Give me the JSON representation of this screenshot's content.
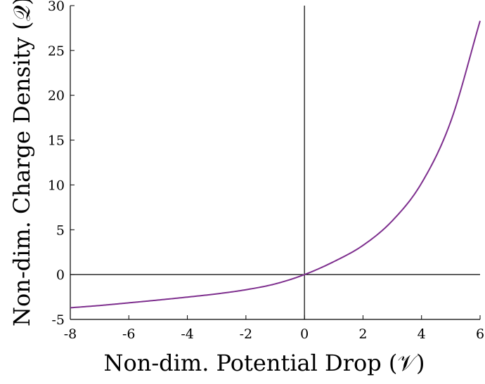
{
  "chart_data": {
    "type": "line",
    "title": "",
    "xlabel": "Non-dim. Potential Drop (𝒱)",
    "ylabel": "Non-dim. Charge Density (𝒬)",
    "xlim": [
      -8,
      6
    ],
    "ylim": [
      -5,
      30
    ],
    "xticks": [
      -8,
      -6,
      -4,
      -2,
      0,
      2,
      4,
      6
    ],
    "yticks": [
      -5,
      0,
      5,
      10,
      15,
      20,
      25,
      30
    ],
    "xtick_labels": [
      "-8",
      "-6",
      "-4",
      "-2",
      "0",
      "2",
      "4",
      "6"
    ],
    "ytick_labels": [
      "-5",
      "0",
      "5",
      "10",
      "15",
      "20",
      "25",
      "30"
    ],
    "grid": false,
    "reference_lines": {
      "x": 0,
      "y": 0,
      "color": "#000000"
    },
    "series": [
      {
        "color": "#7e2f8e",
        "x": [
          -8,
          -7,
          -6,
          -5,
          -4,
          -3,
          -2,
          -1,
          0,
          1,
          2,
          3,
          4,
          5,
          6
        ],
        "y": [
          -3.7,
          -3.45,
          -3.15,
          -2.84,
          -2.51,
          -2.15,
          -1.69,
          -1.04,
          0,
          1.44,
          3.26,
          6.0,
          10.2,
          17.1,
          28.3
        ]
      }
    ]
  }
}
